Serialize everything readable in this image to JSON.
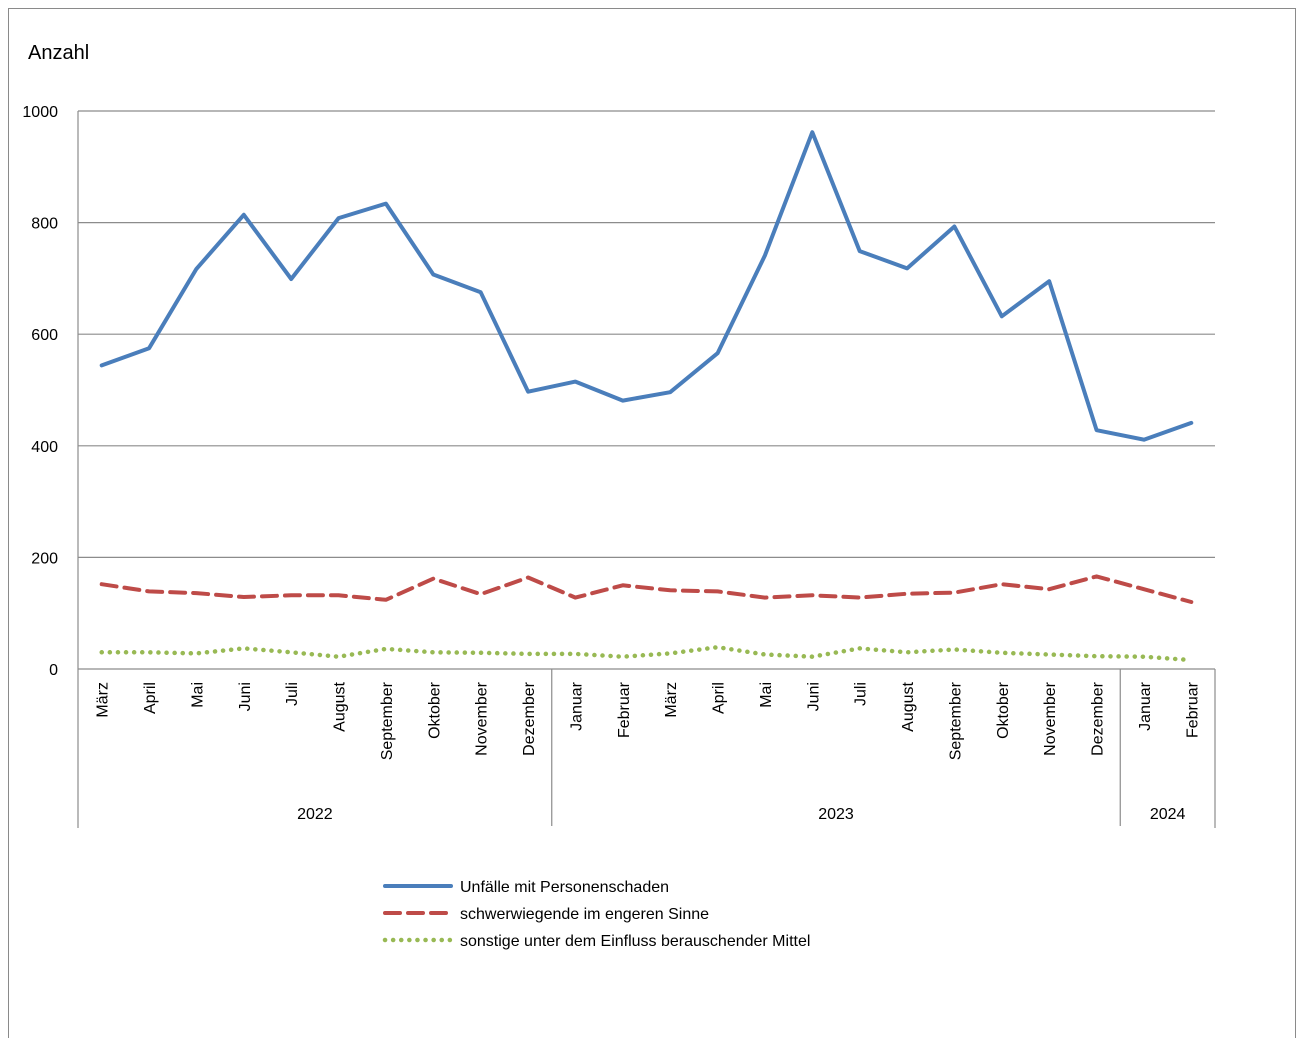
{
  "chart_data": {
    "type": "line",
    "ylabel": "Anzahl",
    "xlabel": "",
    "title": "",
    "ylim": [
      0,
      1000
    ],
    "yticks": [
      0,
      200,
      400,
      600,
      800,
      1000
    ],
    "grid": true,
    "categories": [
      "März",
      "April",
      "Mai",
      "Juni",
      "Juli",
      "August",
      "September",
      "Oktober",
      "November",
      "Dezember",
      "Januar",
      "Februar",
      "März",
      "April",
      "Mai",
      "Juni",
      "Juli",
      "August",
      "September",
      "Oktober",
      "November",
      "Dezember",
      "Januar",
      "Februar"
    ],
    "year_groups": [
      {
        "label": "2022",
        "start": 0,
        "end": 9
      },
      {
        "label": "2023",
        "start": 10,
        "end": 21
      },
      {
        "label": "2024",
        "start": 22,
        "end": 23
      }
    ],
    "legend_position": "bottom-center",
    "series": [
      {
        "name": "Unfälle mit Personenschaden",
        "style": "solid",
        "color": "#4a7ebb",
        "values": [
          544,
          575,
          717,
          814,
          699,
          808,
          834,
          707,
          675,
          497,
          515,
          481,
          496,
          566,
          741,
          962,
          749,
          718,
          793,
          632,
          695,
          428,
          411,
          441
        ]
      },
      {
        "name": "schwerwiegende im engeren Sinne",
        "style": "dashed",
        "color": "#be4b48",
        "values": [
          152,
          139,
          136,
          129,
          132,
          132,
          124,
          162,
          134,
          164,
          128,
          150,
          141,
          139,
          128,
          132,
          128,
          135,
          137,
          152,
          143,
          166,
          143,
          120
        ]
      },
      {
        "name": "sonstige unter dem Einfluss berauschender Mittel",
        "style": "dotted",
        "color": "#98b954",
        "values": [
          30,
          30,
          28,
          37,
          30,
          22,
          36,
          30,
          29,
          27,
          27,
          22,
          28,
          39,
          26,
          22,
          37,
          30,
          35,
          29,
          26,
          23,
          22,
          16
        ]
      }
    ]
  }
}
